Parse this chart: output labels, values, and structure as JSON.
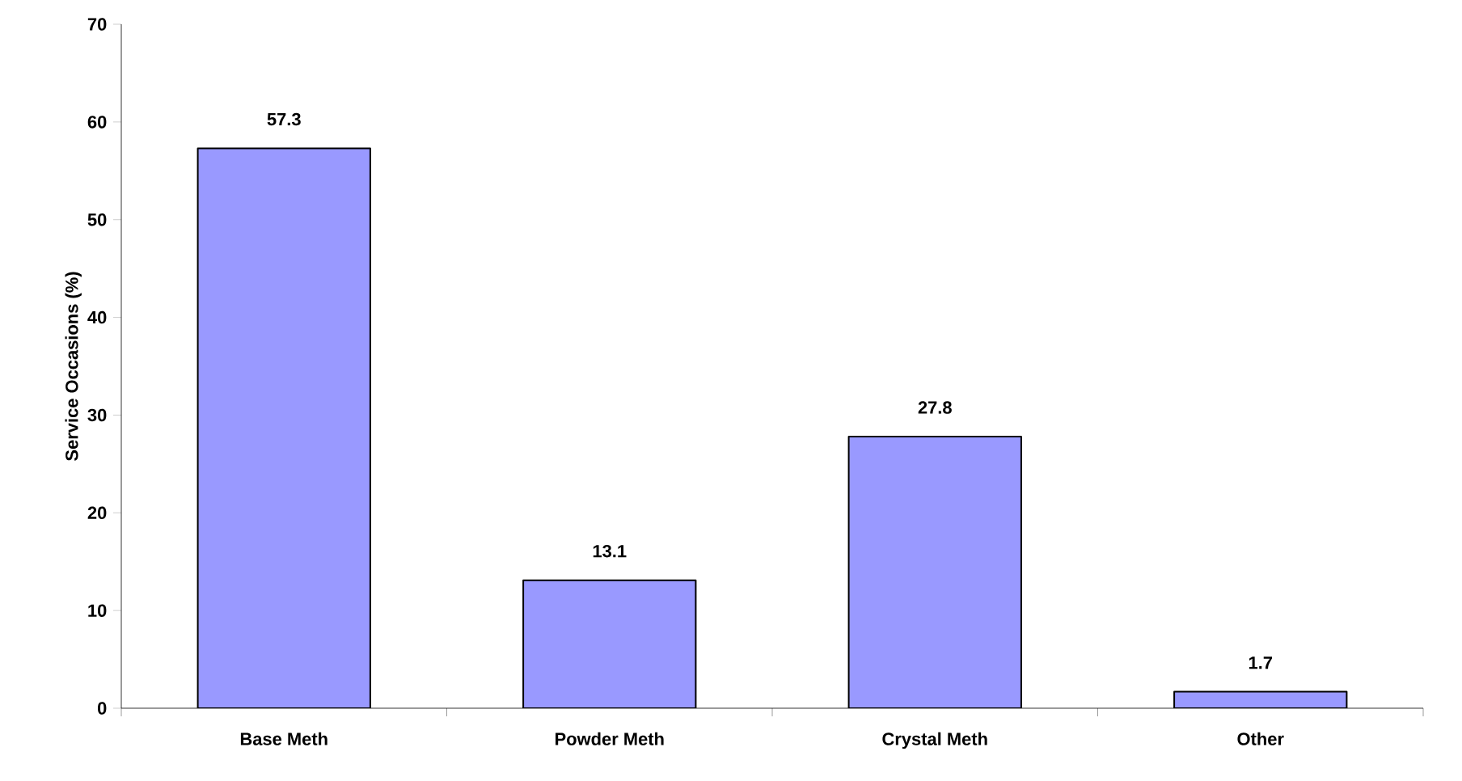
{
  "chart_data": {
    "type": "bar",
    "ylabel": "Service Occasions (%)",
    "categories": [
      "Base Meth",
      "Powder Meth",
      "Crystal Meth",
      "Other"
    ],
    "values": [
      57.3,
      13.1,
      27.8,
      1.7
    ],
    "color": "#9999ff",
    "ylim": [
      0,
      70
    ],
    "yticks": [
      0,
      10,
      20,
      30,
      40,
      50,
      60,
      70
    ],
    "data_labels": true,
    "grid": false
  }
}
